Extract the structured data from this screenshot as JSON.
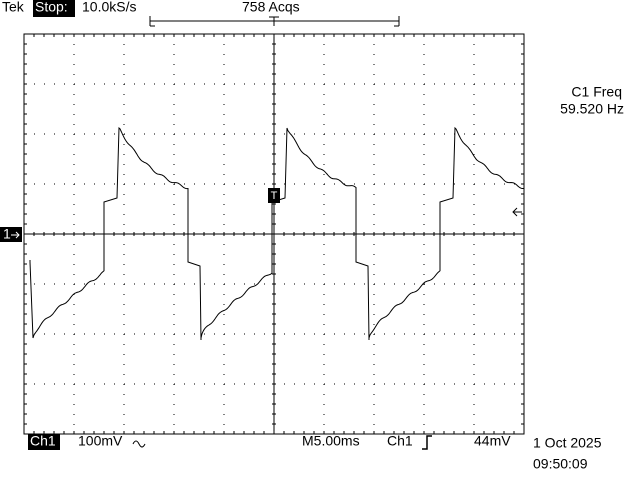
{
  "header": {
    "brand": "Tek",
    "state": "Stop:",
    "sample_rate": "10.0kS/s",
    "acquisitions": "758 Acqs"
  },
  "measurement": {
    "label": "C1 Freq",
    "value": "59.520 Hz"
  },
  "markers": {
    "channel": "1",
    "trigger": "T"
  },
  "footer": {
    "channel": "Ch1",
    "scale": "100mV",
    "timebase": "M5.00ms",
    "trigger_source": "Ch1",
    "trigger_level": "44mV",
    "date": "1 Oct 2025",
    "time": "09:50:09"
  }
}
